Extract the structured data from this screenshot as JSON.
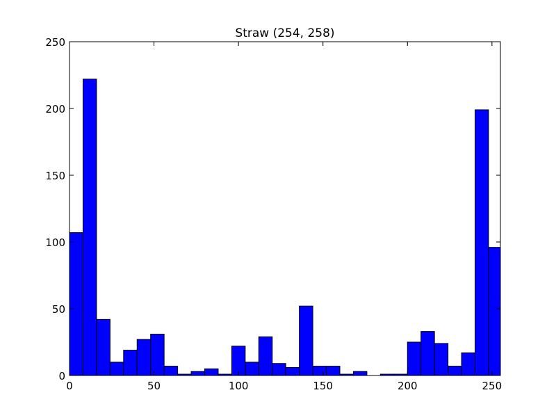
{
  "chart_data": {
    "type": "bar",
    "title": "Straw (254, 258)",
    "xlabel": "",
    "ylabel": "",
    "xlim": [
      0,
      255
    ],
    "ylim": [
      0,
      250
    ],
    "bin_width": 8,
    "bin_starts": [
      0,
      8,
      16,
      24,
      32,
      40,
      48,
      56,
      64,
      72,
      80,
      88,
      96,
      104,
      112,
      120,
      128,
      136,
      144,
      152,
      160,
      168,
      176,
      184,
      192,
      200,
      208,
      216,
      224,
      232,
      240,
      248
    ],
    "values": [
      107,
      222,
      42,
      10,
      19,
      27,
      31,
      7,
      1,
      3,
      5,
      1,
      22,
      10,
      29,
      9,
      6,
      52,
      7,
      7,
      1,
      3,
      0,
      1,
      1,
      25,
      33,
      24,
      7,
      17,
      199,
      96
    ],
    "x_ticks": [
      0,
      50,
      100,
      150,
      200,
      250
    ],
    "x_tick_labels": [
      "0",
      "50",
      "100",
      "150",
      "200",
      "250"
    ],
    "y_ticks": [
      0,
      50,
      100,
      150,
      200,
      250
    ],
    "y_tick_labels": [
      "0",
      "50",
      "100",
      "150",
      "200",
      "250"
    ],
    "grid": false,
    "bar_color": "#0000ff",
    "edge_color": "#000000"
  }
}
